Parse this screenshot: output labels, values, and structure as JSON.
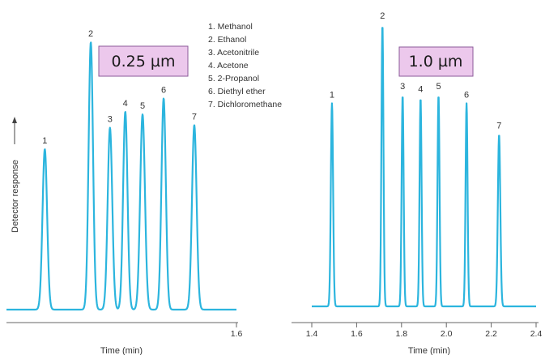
{
  "colors": {
    "trace": "#2cb5de",
    "box_fill": "#ecc8ec",
    "box_border": "#8b5a9a",
    "axis": "#666666"
  },
  "legend": [
    "1. Methanol",
    "2. Ethanol",
    "3. Acetonitrile",
    "4. Acetone",
    "5. 2-Propanol",
    "6. Diethyl ether",
    "7. Dichloromethane"
  ],
  "chart_data": [
    {
      "type": "line",
      "box_label": "0.25 µm",
      "xlabel": "Time (min)",
      "ylabel": "Detector response",
      "xlim": [
        0.4,
        1.6
      ],
      "xticks": [
        "1.6"
      ],
      "baseline": 0.0,
      "peaks": [
        {
          "label": "1",
          "x": 0.6,
          "height": 0.6,
          "width": 0.012
        },
        {
          "label": "2",
          "x": 0.84,
          "height": 1.0,
          "width": 0.0115
        },
        {
          "label": "3",
          "x": 0.94,
          "height": 0.68,
          "width": 0.012
        },
        {
          "label": "4",
          "x": 1.02,
          "height": 0.74,
          "width": 0.0115
        },
        {
          "label": "5",
          "x": 1.11,
          "height": 0.73,
          "width": 0.0125
        },
        {
          "label": "6",
          "x": 1.22,
          "height": 0.79,
          "width": 0.0115
        },
        {
          "label": "7",
          "x": 1.38,
          "height": 0.69,
          "width": 0.012
        }
      ]
    },
    {
      "type": "line",
      "box_label": "1.0 µm",
      "xlabel": "Time (min)",
      "xlim": [
        1.4,
        2.4
      ],
      "xticks": [
        "1.4",
        "1.6",
        "1.8",
        "2.0",
        "2.2",
        "2.4"
      ],
      "baseline": 0.0,
      "peaks": [
        {
          "label": "1",
          "x": 1.49,
          "height": 0.72,
          "width": 0.005
        },
        {
          "label": "2",
          "x": 1.715,
          "height": 1.0,
          "width": 0.0045
        },
        {
          "label": "3",
          "x": 1.805,
          "height": 0.75,
          "width": 0.0045
        },
        {
          "label": "4",
          "x": 1.885,
          "height": 0.74,
          "width": 0.0045
        },
        {
          "label": "5",
          "x": 1.965,
          "height": 0.75,
          "width": 0.0045
        },
        {
          "label": "6",
          "x": 2.09,
          "height": 0.72,
          "width": 0.0045
        },
        {
          "label": "7",
          "x": 2.235,
          "height": 0.61,
          "width": 0.0055
        }
      ]
    }
  ]
}
